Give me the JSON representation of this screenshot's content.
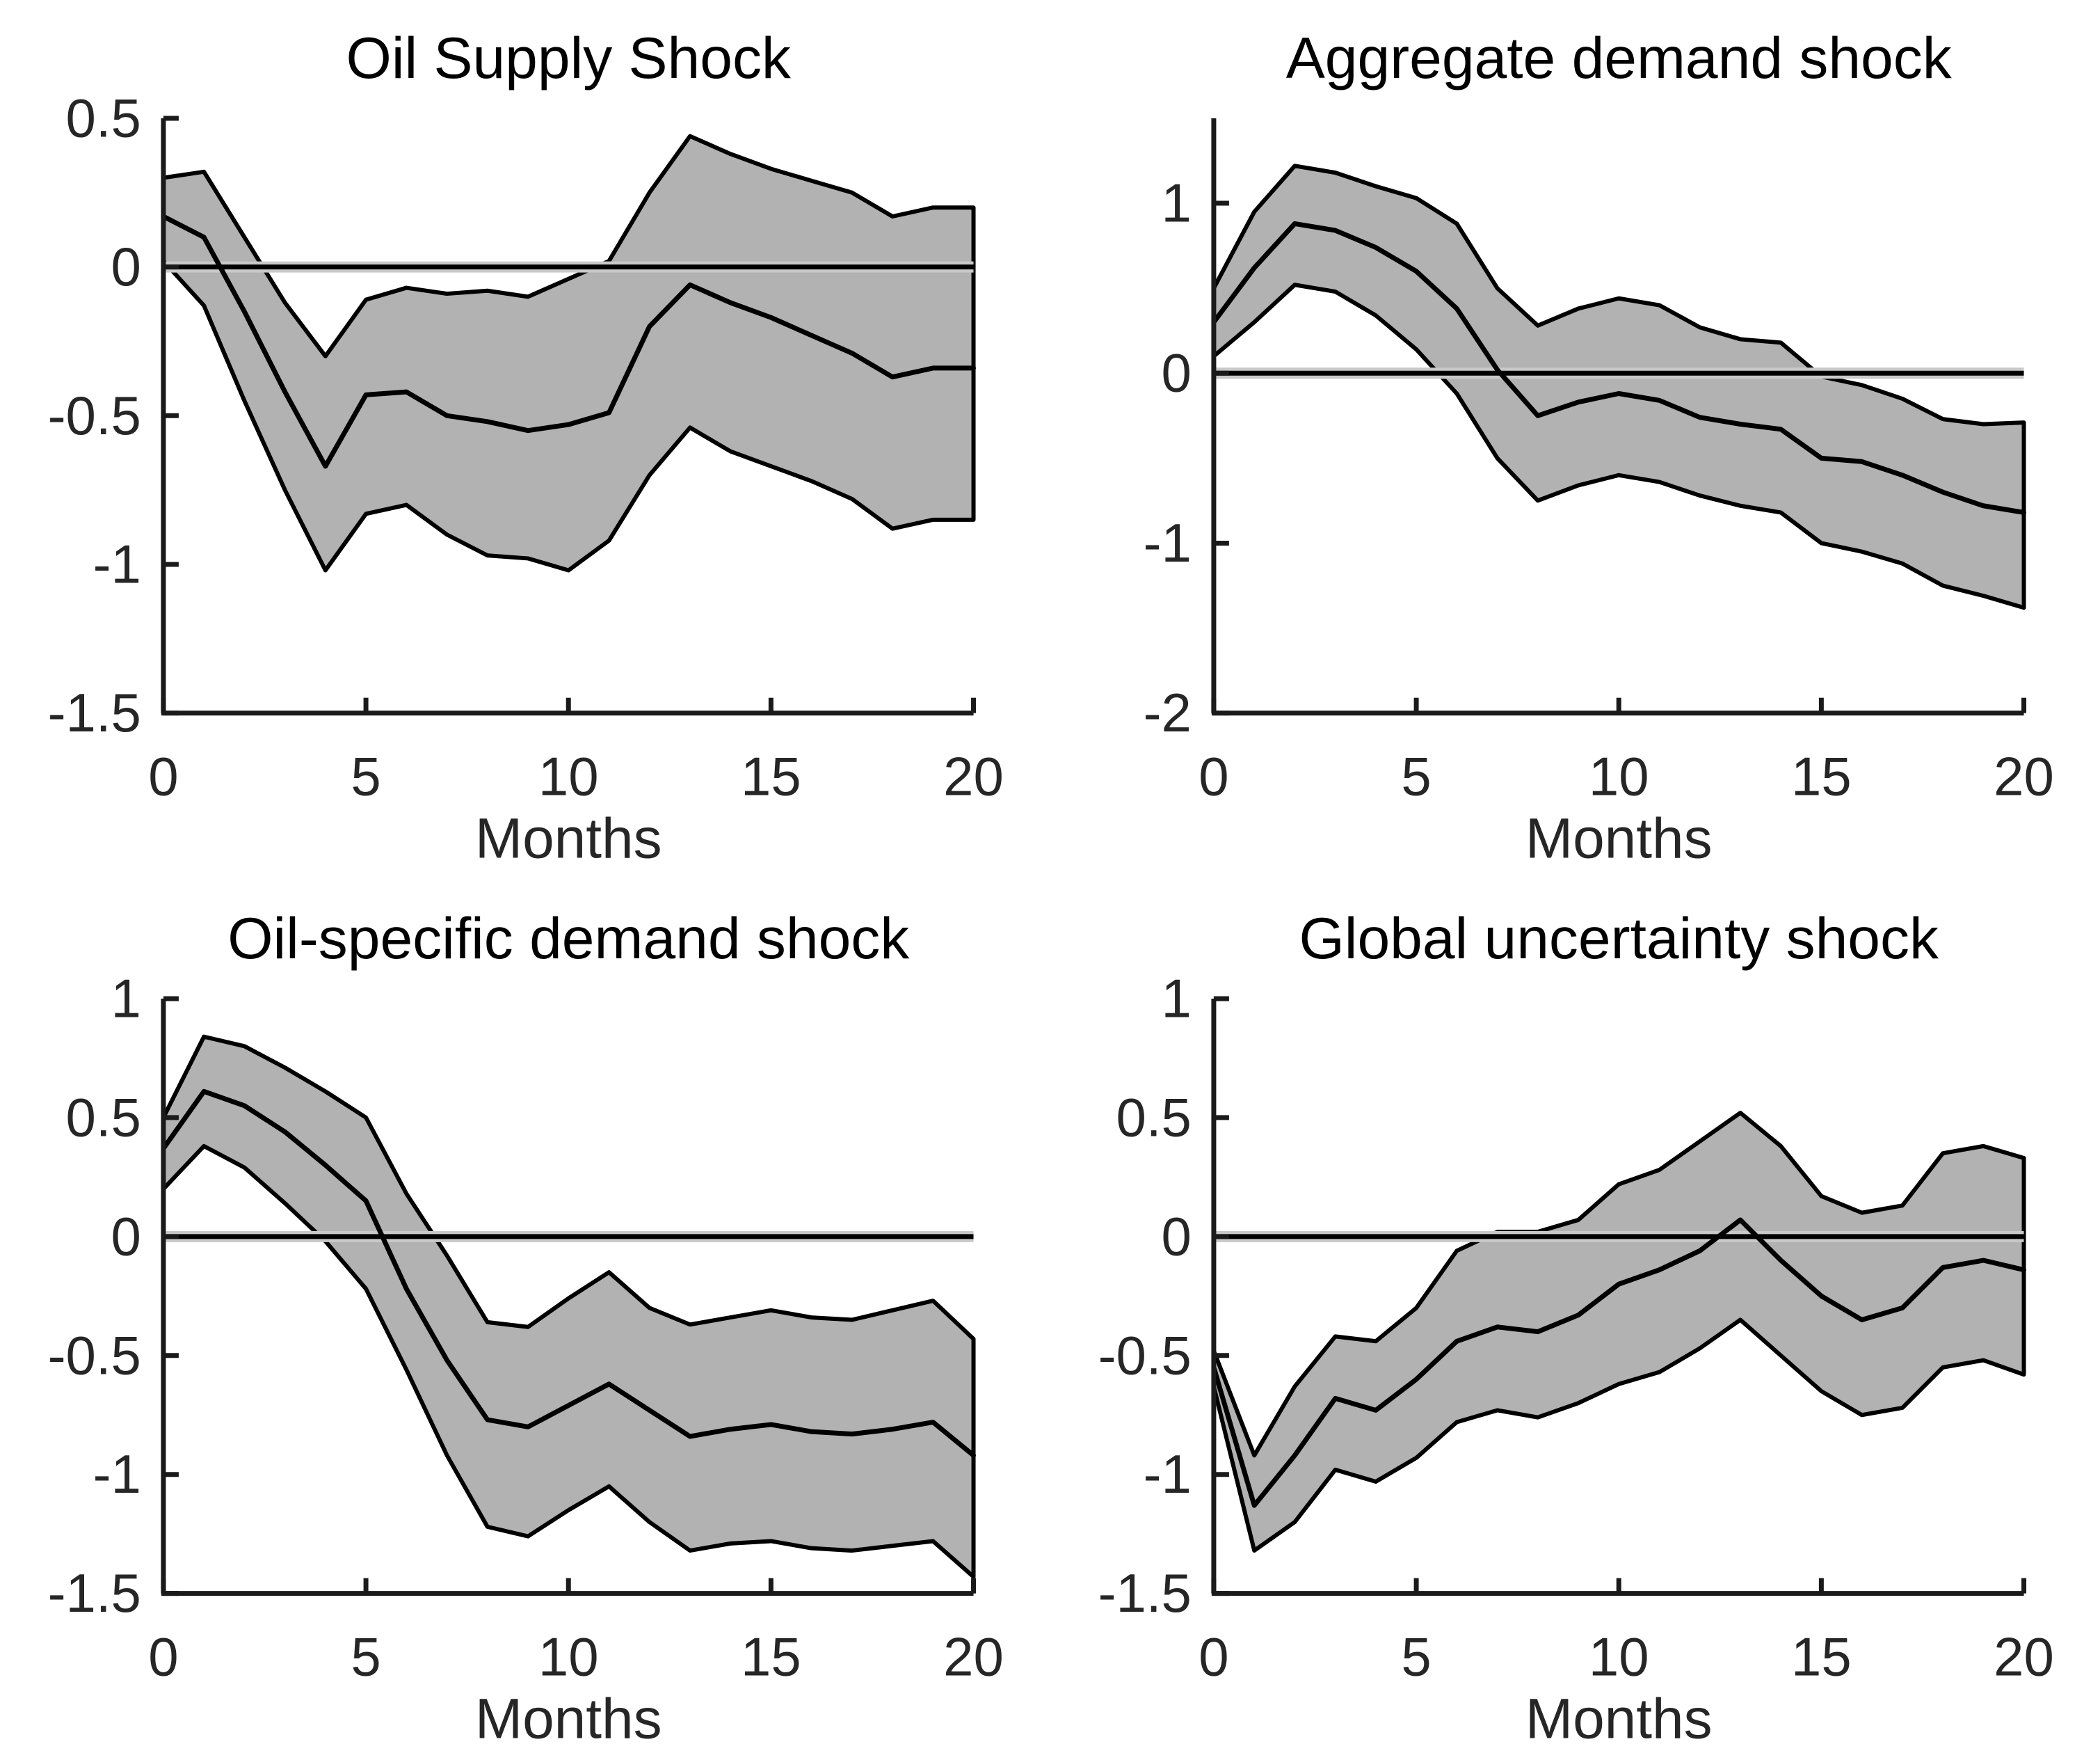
{
  "figure": {
    "background_color": "#ffffff",
    "band_fill_color": "#b2b2b2",
    "line_color": "#000000",
    "axis_color": "#1a1a1a",
    "tick_label_color": "#262626",
    "title_color": "#000000",
    "zero_halo_color": "#c9c9c9",
    "xlabel": "Months"
  },
  "chart_data": [
    {
      "type": "area",
      "title": "Oil Supply Shock",
      "xlabel": "Months",
      "ylabel": "",
      "grid": false,
      "legend": "none",
      "x": [
        0,
        1,
        2,
        3,
        4,
        5,
        6,
        7,
        8,
        9,
        10,
        11,
        12,
        13,
        14,
        15,
        16,
        17,
        18,
        19,
        20
      ],
      "xlim": [
        0,
        20
      ],
      "ylim": [
        -1.5,
        0.5
      ],
      "xticks": [
        0,
        5,
        10,
        15,
        20
      ],
      "xtick_labels": [
        "0",
        "5",
        "10",
        "15",
        "20"
      ],
      "yticks": [
        0.5,
        0,
        -0.5,
        -1,
        -1.5
      ],
      "ytick_labels": [
        "0.5",
        "0",
        "-0.5",
        "-1",
        "-1.5"
      ],
      "zero_line": true,
      "series": [
        {
          "name": "median response",
          "values": [
            0.17,
            0.1,
            -0.15,
            -0.42,
            -0.67,
            -0.43,
            -0.42,
            -0.5,
            -0.52,
            -0.55,
            -0.53,
            -0.49,
            -0.2,
            -0.06,
            -0.12,
            -0.17,
            -0.23,
            -0.29,
            -0.37,
            -0.34,
            -0.34
          ]
        }
      ],
      "band": {
        "name": "confidence band",
        "upper": [
          0.3,
          0.32,
          0.1,
          -0.12,
          -0.3,
          -0.11,
          -0.07,
          -0.09,
          -0.08,
          -0.1,
          -0.04,
          0.02,
          0.25,
          0.44,
          0.38,
          0.33,
          0.29,
          0.25,
          0.17,
          0.2,
          0.2
        ],
        "lower": [
          0.02,
          -0.13,
          -0.45,
          -0.75,
          -1.02,
          -0.83,
          -0.8,
          -0.9,
          -0.97,
          -0.98,
          -1.02,
          -0.92,
          -0.7,
          -0.54,
          -0.62,
          -0.67,
          -0.72,
          -0.78,
          -0.88,
          -0.85,
          -0.85
        ]
      }
    },
    {
      "type": "area",
      "title": "Aggregate demand shock",
      "xlabel": "Months",
      "ylabel": "",
      "grid": false,
      "legend": "none",
      "x": [
        0,
        1,
        2,
        3,
        4,
        5,
        6,
        7,
        8,
        9,
        10,
        11,
        12,
        13,
        14,
        15,
        16,
        17,
        18,
        19,
        20
      ],
      "xlim": [
        0,
        20
      ],
      "ylim": [
        -2,
        1.5
      ],
      "xticks": [
        0,
        5,
        10,
        15,
        20
      ],
      "xtick_labels": [
        "0",
        "5",
        "10",
        "15",
        "20"
      ],
      "yticks": [
        1,
        0,
        -1,
        -2
      ],
      "ytick_labels": [
        "1",
        "0",
        "-1",
        "-2"
      ],
      "zero_line": true,
      "series": [
        {
          "name": "median response",
          "values": [
            0.3,
            0.62,
            0.88,
            0.84,
            0.74,
            0.6,
            0.38,
            0.02,
            -0.25,
            -0.17,
            -0.12,
            -0.16,
            -0.26,
            -0.3,
            -0.33,
            -0.5,
            -0.52,
            -0.6,
            -0.7,
            -0.78,
            -0.82
          ]
        }
      ],
      "band": {
        "name": "confidence band",
        "upper": [
          0.5,
          0.95,
          1.22,
          1.18,
          1.1,
          1.03,
          0.88,
          0.5,
          0.28,
          0.38,
          0.44,
          0.4,
          0.27,
          0.2,
          0.18,
          -0.02,
          -0.07,
          -0.15,
          -0.27,
          -0.3,
          -0.29
        ],
        "lower": [
          0.1,
          0.3,
          0.52,
          0.48,
          0.34,
          0.14,
          -0.12,
          -0.5,
          -0.75,
          -0.66,
          -0.6,
          -0.64,
          -0.72,
          -0.78,
          -0.82,
          -1.0,
          -1.05,
          -1.12,
          -1.25,
          -1.31,
          -1.38
        ]
      }
    },
    {
      "type": "area",
      "title": "Oil-specific demand shock",
      "xlabel": "Months",
      "ylabel": "",
      "grid": false,
      "legend": "none",
      "x": [
        0,
        1,
        2,
        3,
        4,
        5,
        6,
        7,
        8,
        9,
        10,
        11,
        12,
        13,
        14,
        15,
        16,
        17,
        18,
        19,
        20
      ],
      "xlim": [
        0,
        20
      ],
      "ylim": [
        -1.5,
        1
      ],
      "xticks": [
        0,
        5,
        10,
        15,
        20
      ],
      "xtick_labels": [
        "0",
        "5",
        "10",
        "15",
        "20"
      ],
      "yticks": [
        1,
        0.5,
        0,
        -0.5,
        -1,
        -1.5
      ],
      "ytick_labels": [
        "1",
        "0.5",
        "0",
        "-0.5",
        "-1",
        "-1.5"
      ],
      "zero_line": true,
      "series": [
        {
          "name": "median response",
          "values": [
            0.37,
            0.61,
            0.55,
            0.44,
            0.3,
            0.15,
            -0.22,
            -0.52,
            -0.77,
            -0.8,
            -0.71,
            -0.62,
            -0.73,
            -0.84,
            -0.81,
            -0.79,
            -0.82,
            -0.83,
            -0.81,
            -0.78,
            -0.92
          ]
        }
      ],
      "band": {
        "name": "confidence band",
        "upper": [
          0.5,
          0.84,
          0.8,
          0.71,
          0.61,
          0.5,
          0.18,
          -0.08,
          -0.36,
          -0.38,
          -0.26,
          -0.15,
          -0.3,
          -0.37,
          -0.34,
          -0.31,
          -0.34,
          -0.35,
          -0.31,
          -0.27,
          -0.43
        ],
        "lower": [
          0.2,
          0.38,
          0.29,
          0.14,
          -0.02,
          -0.22,
          -0.56,
          -0.92,
          -1.22,
          -1.26,
          -1.15,
          -1.05,
          -1.2,
          -1.32,
          -1.29,
          -1.28,
          -1.31,
          -1.32,
          -1.3,
          -1.28,
          -1.43
        ]
      }
    },
    {
      "type": "area",
      "title": "Global uncertainty shock",
      "xlabel": "Months",
      "ylabel": "",
      "grid": false,
      "legend": "none",
      "x": [
        0,
        1,
        2,
        3,
        4,
        5,
        6,
        7,
        8,
        9,
        10,
        11,
        12,
        13,
        14,
        15,
        16,
        17,
        18,
        19,
        20
      ],
      "xlim": [
        0,
        20
      ],
      "ylim": [
        -1.5,
        1
      ],
      "xticks": [
        0,
        5,
        10,
        15,
        20
      ],
      "xtick_labels": [
        "0",
        "5",
        "10",
        "15",
        "20"
      ],
      "yticks": [
        1,
        0.5,
        0,
        -0.5,
        -1,
        -1.5
      ],
      "ytick_labels": [
        "1",
        "0.5",
        "0",
        "-0.5",
        "-1",
        "-1.5"
      ],
      "zero_line": true,
      "series": [
        {
          "name": "median response",
          "values": [
            -0.55,
            -1.13,
            -0.92,
            -0.68,
            -0.73,
            -0.6,
            -0.44,
            -0.38,
            -0.4,
            -0.33,
            -0.2,
            -0.14,
            -0.06,
            0.07,
            -0.1,
            -0.25,
            -0.35,
            -0.3,
            -0.13,
            -0.1,
            -0.14
          ]
        }
      ],
      "band": {
        "name": "confidence band",
        "upper": [
          -0.48,
          -0.92,
          -0.63,
          -0.42,
          -0.44,
          -0.3,
          -0.06,
          0.02,
          0.02,
          0.07,
          0.22,
          0.28,
          0.4,
          0.52,
          0.38,
          0.17,
          0.1,
          0.13,
          0.35,
          0.38,
          0.33
        ],
        "lower": [
          -0.63,
          -1.32,
          -1.2,
          -0.98,
          -1.03,
          -0.93,
          -0.78,
          -0.73,
          -0.76,
          -0.7,
          -0.62,
          -0.57,
          -0.47,
          -0.35,
          -0.5,
          -0.65,
          -0.75,
          -0.72,
          -0.55,
          -0.52,
          -0.58
        ]
      }
    }
  ]
}
